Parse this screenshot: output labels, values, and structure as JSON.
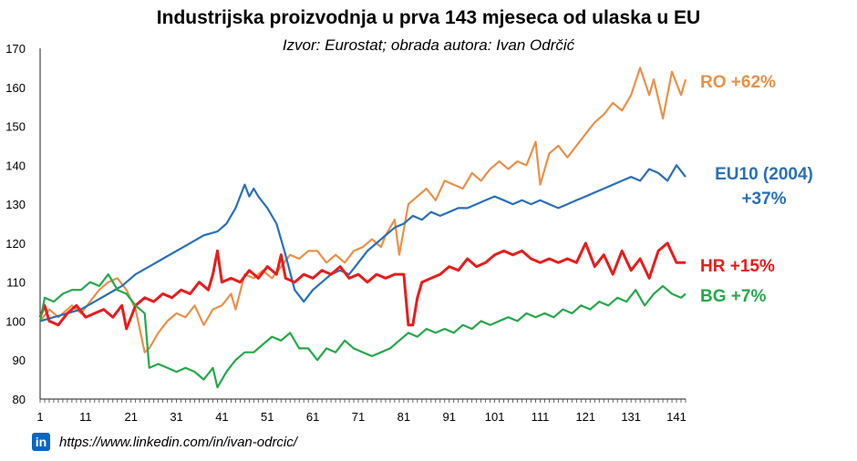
{
  "title": "Industrijska proizvodnja u prva 143 mjeseca od ulaska u EU",
  "subtitle": "Izvor: Eurostat; obrada autora: Ivan Odrčić",
  "footer": {
    "icon": "linkedin-icon",
    "icon_text": "in",
    "url": "https://www.linkedin.com/in/ivan-odrcic/"
  },
  "chart_data": {
    "type": "line",
    "title": "Industrijska proizvodnja u prva 143 mjeseca od ulaska u EU",
    "xlim": [
      1,
      143
    ],
    "ylim": [
      80,
      170
    ],
    "x_ticks": [
      1,
      11,
      21,
      31,
      41,
      51,
      61,
      71,
      81,
      91,
      101,
      111,
      121,
      131,
      141
    ],
    "y_ticks": [
      80,
      90,
      100,
      110,
      120,
      130,
      140,
      150,
      160,
      170
    ],
    "grid": false,
    "series": [
      {
        "name": "RO",
        "label": "RO +62%",
        "color": "#e8914a",
        "points": [
          [
            1,
            100
          ],
          [
            3,
            103
          ],
          [
            5,
            101
          ],
          [
            8,
            104
          ],
          [
            10,
            102
          ],
          [
            12,
            105
          ],
          [
            14,
            108
          ],
          [
            16,
            110
          ],
          [
            18,
            111
          ],
          [
            20,
            108
          ],
          [
            22,
            103
          ],
          [
            24,
            92
          ],
          [
            25,
            93
          ],
          [
            27,
            97
          ],
          [
            29,
            100
          ],
          [
            31,
            102
          ],
          [
            33,
            101
          ],
          [
            35,
            104
          ],
          [
            37,
            99
          ],
          [
            39,
            103
          ],
          [
            41,
            104
          ],
          [
            43,
            107
          ],
          [
            44,
            103
          ],
          [
            46,
            112
          ],
          [
            48,
            111
          ],
          [
            50,
            113
          ],
          [
            52,
            111
          ],
          [
            54,
            114
          ],
          [
            56,
            117
          ],
          [
            58,
            116
          ],
          [
            60,
            118
          ],
          [
            62,
            118
          ],
          [
            64,
            115
          ],
          [
            66,
            117
          ],
          [
            68,
            115
          ],
          [
            70,
            118
          ],
          [
            72,
            119
          ],
          [
            74,
            121
          ],
          [
            76,
            119
          ],
          [
            77,
            122
          ],
          [
            79,
            126
          ],
          [
            80,
            117
          ],
          [
            82,
            130
          ],
          [
            84,
            132
          ],
          [
            86,
            134
          ],
          [
            88,
            131
          ],
          [
            90,
            136
          ],
          [
            92,
            135
          ],
          [
            94,
            134
          ],
          [
            96,
            138
          ],
          [
            98,
            136
          ],
          [
            100,
            139
          ],
          [
            102,
            141
          ],
          [
            104,
            139
          ],
          [
            106,
            141
          ],
          [
            108,
            140
          ],
          [
            110,
            146
          ],
          [
            111,
            135
          ],
          [
            113,
            143
          ],
          [
            115,
            145
          ],
          [
            117,
            142
          ],
          [
            119,
            145
          ],
          [
            121,
            148
          ],
          [
            123,
            151
          ],
          [
            125,
            153
          ],
          [
            127,
            156
          ],
          [
            129,
            154
          ],
          [
            131,
            158
          ],
          [
            133,
            165
          ],
          [
            135,
            158
          ],
          [
            136,
            162
          ],
          [
            138,
            152
          ],
          [
            140,
            164
          ],
          [
            142,
            158
          ],
          [
            143,
            162
          ]
        ]
      },
      {
        "name": "EU10 (2004)",
        "label_line1": "EU10 (2004)",
        "label_line2": "+37%",
        "color": "#2a6fb5",
        "points": [
          [
            1,
            100
          ],
          [
            4,
            101
          ],
          [
            7,
            102
          ],
          [
            10,
            103
          ],
          [
            13,
            105
          ],
          [
            16,
            107
          ],
          [
            19,
            109
          ],
          [
            22,
            112
          ],
          [
            25,
            114
          ],
          [
            28,
            116
          ],
          [
            31,
            118
          ],
          [
            34,
            120
          ],
          [
            37,
            122
          ],
          [
            40,
            123
          ],
          [
            42,
            125
          ],
          [
            44,
            129
          ],
          [
            46,
            135
          ],
          [
            47,
            132
          ],
          [
            48,
            134
          ],
          [
            49,
            132
          ],
          [
            51,
            129
          ],
          [
            53,
            125
          ],
          [
            55,
            117
          ],
          [
            57,
            108
          ],
          [
            59,
            105
          ],
          [
            61,
            108
          ],
          [
            63,
            110
          ],
          [
            65,
            112
          ],
          [
            67,
            113
          ],
          [
            69,
            112
          ],
          [
            71,
            115
          ],
          [
            73,
            118
          ],
          [
            75,
            120
          ],
          [
            77,
            122
          ],
          [
            79,
            124
          ],
          [
            81,
            125
          ],
          [
            83,
            127
          ],
          [
            85,
            126
          ],
          [
            87,
            128
          ],
          [
            89,
            127
          ],
          [
            91,
            128
          ],
          [
            93,
            129
          ],
          [
            95,
            129
          ],
          [
            97,
            130
          ],
          [
            99,
            131
          ],
          [
            101,
            132
          ],
          [
            103,
            131
          ],
          [
            105,
            130
          ],
          [
            107,
            131
          ],
          [
            109,
            130
          ],
          [
            111,
            131
          ],
          [
            113,
            130
          ],
          [
            115,
            129
          ],
          [
            117,
            130
          ],
          [
            119,
            131
          ],
          [
            121,
            132
          ],
          [
            123,
            133
          ],
          [
            125,
            134
          ],
          [
            127,
            135
          ],
          [
            129,
            136
          ],
          [
            131,
            137
          ],
          [
            133,
            136
          ],
          [
            135,
            139
          ],
          [
            137,
            138
          ],
          [
            139,
            136
          ],
          [
            141,
            140
          ],
          [
            143,
            137
          ]
        ]
      },
      {
        "name": "HR",
        "label": "HR +15%",
        "color": "#e81c1c",
        "points": [
          [
            1,
            101
          ],
          [
            2,
            104
          ],
          [
            3,
            100
          ],
          [
            5,
            99
          ],
          [
            7,
            102
          ],
          [
            9,
            104
          ],
          [
            11,
            101
          ],
          [
            13,
            102
          ],
          [
            15,
            103
          ],
          [
            17,
            101
          ],
          [
            19,
            104
          ],
          [
            20,
            98
          ],
          [
            22,
            104
          ],
          [
            24,
            106
          ],
          [
            26,
            105
          ],
          [
            28,
            107
          ],
          [
            30,
            106
          ],
          [
            32,
            108
          ],
          [
            34,
            107
          ],
          [
            36,
            110
          ],
          [
            38,
            108
          ],
          [
            39,
            112
          ],
          [
            40,
            118
          ],
          [
            41,
            110
          ],
          [
            43,
            111
          ],
          [
            45,
            110
          ],
          [
            47,
            113
          ],
          [
            49,
            111
          ],
          [
            51,
            114
          ],
          [
            53,
            112
          ],
          [
            54,
            117
          ],
          [
            55,
            111
          ],
          [
            57,
            110
          ],
          [
            59,
            112
          ],
          [
            61,
            111
          ],
          [
            63,
            113
          ],
          [
            65,
            112
          ],
          [
            67,
            114
          ],
          [
            69,
            111
          ],
          [
            71,
            112
          ],
          [
            73,
            110
          ],
          [
            75,
            112
          ],
          [
            77,
            111
          ],
          [
            79,
            112
          ],
          [
            81,
            112
          ],
          [
            82,
            99
          ],
          [
            83,
            99
          ],
          [
            84,
            106
          ],
          [
            85,
            110
          ],
          [
            87,
            111
          ],
          [
            89,
            112
          ],
          [
            91,
            114
          ],
          [
            93,
            113
          ],
          [
            95,
            116
          ],
          [
            97,
            114
          ],
          [
            99,
            115
          ],
          [
            101,
            117
          ],
          [
            103,
            118
          ],
          [
            105,
            117
          ],
          [
            107,
            118
          ],
          [
            109,
            116
          ],
          [
            111,
            115
          ],
          [
            113,
            116
          ],
          [
            115,
            115
          ],
          [
            117,
            116
          ],
          [
            119,
            115
          ],
          [
            121,
            120
          ],
          [
            123,
            114
          ],
          [
            125,
            117
          ],
          [
            127,
            112
          ],
          [
            129,
            118
          ],
          [
            131,
            113
          ],
          [
            133,
            116
          ],
          [
            135,
            111
          ],
          [
            137,
            118
          ],
          [
            139,
            120
          ],
          [
            141,
            115
          ],
          [
            143,
            115
          ]
        ]
      },
      {
        "name": "BG",
        "label": "BG +7%",
        "color": "#25a84a",
        "points": [
          [
            1,
            100
          ],
          [
            2,
            106
          ],
          [
            4,
            105
          ],
          [
            6,
            107
          ],
          [
            8,
            108
          ],
          [
            10,
            108
          ],
          [
            12,
            110
          ],
          [
            14,
            109
          ],
          [
            16,
            112
          ],
          [
            18,
            108
          ],
          [
            20,
            107
          ],
          [
            22,
            104
          ],
          [
            24,
            102
          ],
          [
            25,
            88
          ],
          [
            27,
            89
          ],
          [
            29,
            88
          ],
          [
            31,
            87
          ],
          [
            33,
            88
          ],
          [
            35,
            87
          ],
          [
            37,
            85
          ],
          [
            39,
            88
          ],
          [
            40,
            83
          ],
          [
            42,
            87
          ],
          [
            44,
            90
          ],
          [
            46,
            92
          ],
          [
            48,
            92
          ],
          [
            50,
            94
          ],
          [
            52,
            96
          ],
          [
            54,
            95
          ],
          [
            56,
            97
          ],
          [
            58,
            93
          ],
          [
            60,
            93
          ],
          [
            62,
            90
          ],
          [
            64,
            93
          ],
          [
            66,
            92
          ],
          [
            68,
            95
          ],
          [
            70,
            93
          ],
          [
            72,
            92
          ],
          [
            74,
            91
          ],
          [
            76,
            92
          ],
          [
            78,
            93
          ],
          [
            80,
            95
          ],
          [
            82,
            97
          ],
          [
            84,
            96
          ],
          [
            86,
            98
          ],
          [
            88,
            97
          ],
          [
            90,
            98
          ],
          [
            92,
            97
          ],
          [
            94,
            99
          ],
          [
            96,
            98
          ],
          [
            98,
            100
          ],
          [
            100,
            99
          ],
          [
            102,
            100
          ],
          [
            104,
            101
          ],
          [
            106,
            100
          ],
          [
            108,
            102
          ],
          [
            110,
            101
          ],
          [
            112,
            102
          ],
          [
            114,
            101
          ],
          [
            116,
            103
          ],
          [
            118,
            102
          ],
          [
            120,
            104
          ],
          [
            122,
            103
          ],
          [
            124,
            105
          ],
          [
            126,
            104
          ],
          [
            128,
            106
          ],
          [
            130,
            105
          ],
          [
            132,
            108
          ],
          [
            134,
            104
          ],
          [
            136,
            107
          ],
          [
            138,
            109
          ],
          [
            140,
            107
          ],
          [
            142,
            106
          ],
          [
            143,
            107
          ]
        ]
      }
    ]
  }
}
